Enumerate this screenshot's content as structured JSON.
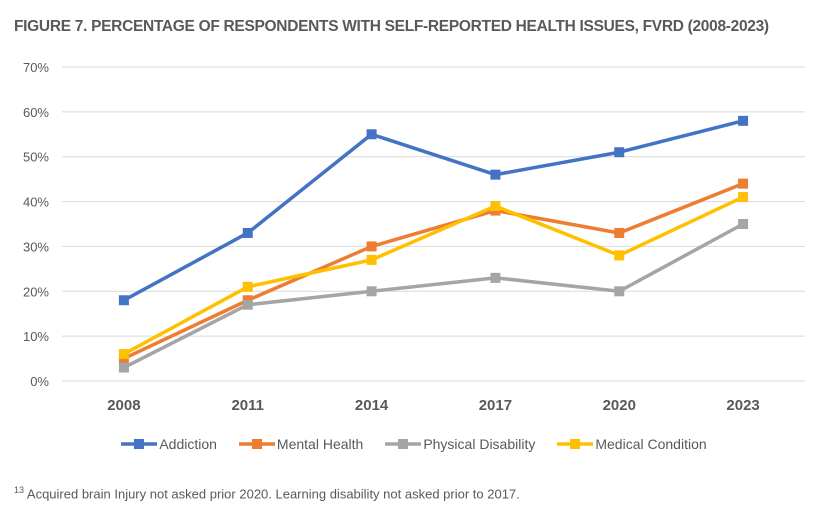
{
  "chart_data": {
    "type": "line",
    "title": "FIGURE 7. PERCENTAGE OF RESPONDENTS WITH SELF-REPORTED HEALTH ISSUES, FVRD (2008-2023)",
    "xlabel": "",
    "ylabel": "",
    "categories": [
      "2008",
      "2011",
      "2014",
      "2017",
      "2020",
      "2023"
    ],
    "ylim": [
      0,
      70
    ],
    "yticks": [
      "0%",
      "10%",
      "20%",
      "30%",
      "40%",
      "50%",
      "60%",
      "70%"
    ],
    "grid": true,
    "legend_position": "bottom",
    "series": [
      {
        "name": "Addiction",
        "color": "#4472C4",
        "values": [
          18,
          33,
          55,
          46,
          51,
          58
        ]
      },
      {
        "name": "Mental Health",
        "color": "#ED7D31",
        "values": [
          5,
          18,
          30,
          38,
          33,
          44
        ]
      },
      {
        "name": "Physical Disability",
        "color": "#A5A5A5",
        "values": [
          3,
          17,
          20,
          23,
          20,
          35
        ]
      },
      {
        "name": "Medical Condition",
        "color": "#FFC000",
        "values": [
          6,
          21,
          27,
          39,
          28,
          41
        ]
      }
    ]
  },
  "footnote": {
    "marker": "13",
    "text": " Acquired brain Injury not asked prior 2020. Learning disability not asked prior to 2017."
  }
}
